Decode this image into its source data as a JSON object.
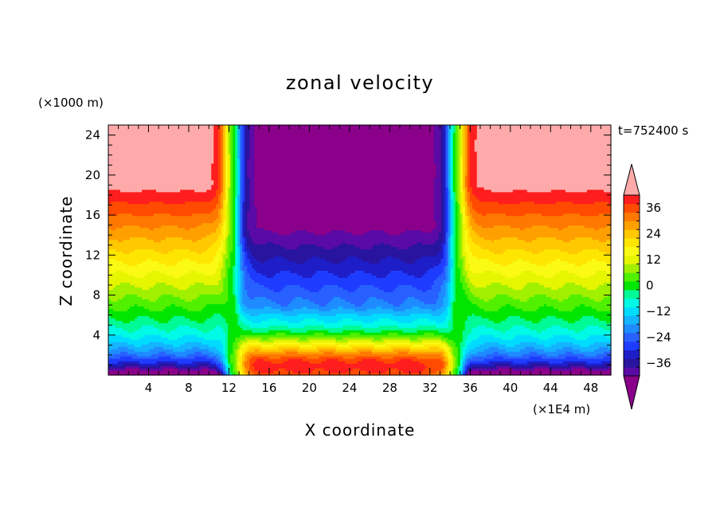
{
  "chart_data": {
    "type": "heatmap",
    "subtype": "filled-contour",
    "title": "zonal velocity",
    "xlabel": "X coordinate",
    "ylabel": "Z coordinate",
    "x_unit": "(×1E4 m)",
    "y_unit": "(×1000 m)",
    "time_label": "t=752400 s",
    "xlim": [
      0,
      50
    ],
    "ylim": [
      0,
      25
    ],
    "x_ticks": [
      4,
      8,
      12,
      16,
      20,
      24,
      28,
      32,
      36,
      40,
      44,
      48
    ],
    "y_ticks": [
      4,
      8,
      12,
      16,
      20,
      24
    ],
    "colorbar": {
      "min": -42,
      "max": 42,
      "step": 4,
      "extend": "both",
      "tick_values": [
        36,
        24,
        12,
        0,
        -12,
        -24,
        -36
      ],
      "tick_labels": [
        "36",
        "24",
        "12",
        "0",
        "−12",
        "−24",
        "−36"
      ]
    },
    "field_description": {
      "jet_center_x": 23.5,
      "low_level_max_u": 40,
      "upper_min_u": -44,
      "outer_upper_max_u": 44
    },
    "colors": {
      "palette": [
        "#8b008b",
        "#5a0aa6",
        "#28149e",
        "#1e1ec8",
        "#1e3cff",
        "#2861ff",
        "#1e8cff",
        "#14b4ff",
        "#00dcff",
        "#00fae6",
        "#00fa96",
        "#00e600",
        "#50f000",
        "#a0f000",
        "#e6f500",
        "#fafa14",
        "#ffe600",
        "#ffc800",
        "#ffa000",
        "#ff7800",
        "#ff4b00",
        "#ff1e1e",
        "#ffaaaa"
      ]
    }
  }
}
